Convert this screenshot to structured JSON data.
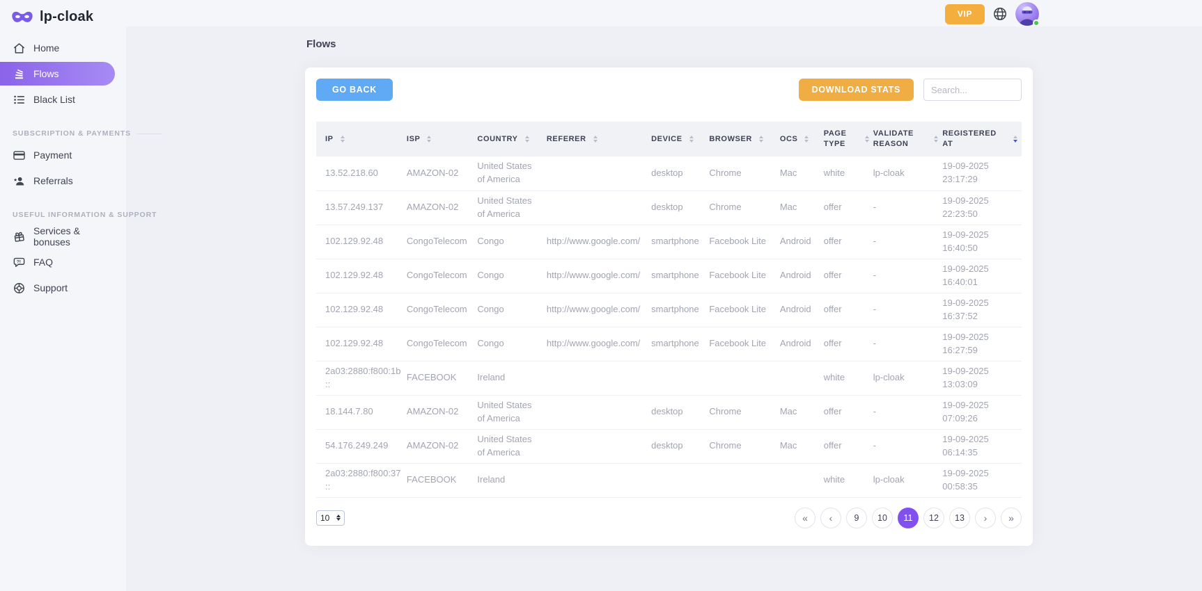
{
  "brand": {
    "name": "lp-cloak"
  },
  "colors": {
    "brand_purple": "#7A5BE8",
    "active_item_gradient": [
      "#8A63E9",
      "#A78BF4"
    ],
    "vip_button": "#F3AE3D",
    "go_back_button": "#60A9F4",
    "download_button": "#F0AD43",
    "active_page": "#8250EE",
    "online_status": "#45C94A",
    "active_sort_arrow": "#4A54E8"
  },
  "header": {
    "vip_label": "VIP"
  },
  "sidebar": {
    "main_items": [
      {
        "label": "Home",
        "icon": "home"
      },
      {
        "label": "Flows",
        "icon": "flows",
        "active": true
      },
      {
        "label": "Black List",
        "icon": "list"
      }
    ],
    "sections": [
      {
        "title": "SUBSCRIPTION & PAYMENTS",
        "items": [
          {
            "label": "Payment",
            "icon": "credit-card"
          },
          {
            "label": "Referrals",
            "icon": "referrals"
          }
        ]
      },
      {
        "title": "USEFUL INFORMATION & SUPPORT",
        "items": [
          {
            "label": "Services & bonuses",
            "icon": "gift"
          },
          {
            "label": "FAQ",
            "icon": "faq"
          },
          {
            "label": "Support",
            "icon": "support"
          }
        ]
      }
    ]
  },
  "page": {
    "title": "Flows"
  },
  "toolbar": {
    "go_back_label": "GO BACK",
    "download_stats_label": "DOWNLOAD STATS",
    "search_placeholder": "Search..."
  },
  "table": {
    "columns": [
      {
        "label": "IP",
        "sort": "none"
      },
      {
        "label": "ISP",
        "sort": "none"
      },
      {
        "label": "COUNTRY",
        "sort": "none"
      },
      {
        "label": "REFERER",
        "sort": "none"
      },
      {
        "label": "DEVICE",
        "sort": "none"
      },
      {
        "label": "BROWSER",
        "sort": "none"
      },
      {
        "label": "OCS",
        "sort": "none"
      },
      {
        "label": "PAGE TYPE",
        "sort": "none"
      },
      {
        "label": "VALIDATE REASON",
        "sort": "none"
      },
      {
        "label": "REGISTERED AT",
        "sort": "desc"
      }
    ],
    "rows": [
      [
        "13.52.218.60",
        "AMAZON-02",
        "United States of America",
        "",
        "desktop",
        "Chrome",
        "Mac",
        "white",
        "lp-cloak",
        "19-09-2025 23:17:29"
      ],
      [
        "13.57.249.137",
        "AMAZON-02",
        "United States of America",
        "",
        "desktop",
        "Chrome",
        "Mac",
        "offer",
        "-",
        "19-09-2025 22:23:50"
      ],
      [
        "102.129.92.48",
        "CongoTelecom",
        "Congo",
        "http://www.google.com/",
        "smartphone",
        "Facebook Lite",
        "Android",
        "offer",
        "-",
        "19-09-2025 16:40:50"
      ],
      [
        "102.129.92.48",
        "CongoTelecom",
        "Congo",
        "http://www.google.com/",
        "smartphone",
        "Facebook Lite",
        "Android",
        "offer",
        "-",
        "19-09-2025 16:40:01"
      ],
      [
        "102.129.92.48",
        "CongoTelecom",
        "Congo",
        "http://www.google.com/",
        "smartphone",
        "Facebook Lite",
        "Android",
        "offer",
        "-",
        "19-09-2025 16:37:52"
      ],
      [
        "102.129.92.48",
        "CongoTelecom",
        "Congo",
        "http://www.google.com/",
        "smartphone",
        "Facebook Lite",
        "Android",
        "offer",
        "-",
        "19-09-2025 16:27:59"
      ],
      [
        "2a03:2880:f800:1b::",
        "FACEBOOK",
        "Ireland",
        "",
        "",
        "",
        "",
        "white",
        "lp-cloak",
        "19-09-2025 13:03:09"
      ],
      [
        "18.144.7.80",
        "AMAZON-02",
        "United States of America",
        "",
        "desktop",
        "Chrome",
        "Mac",
        "offer",
        "-",
        "19-09-2025 07:09:26"
      ],
      [
        "54.176.249.249",
        "AMAZON-02",
        "United States of America",
        "",
        "desktop",
        "Chrome",
        "Mac",
        "offer",
        "-",
        "19-09-2025 06:14:35"
      ],
      [
        "2a03:2880:f800:37::",
        "FACEBOOK",
        "Ireland",
        "",
        "",
        "",
        "",
        "white",
        "lp-cloak",
        "19-09-2025 00:58:35"
      ]
    ]
  },
  "pagination": {
    "page_size": "10",
    "buttons": [
      {
        "label": "«",
        "kind": "first"
      },
      {
        "label": "‹",
        "kind": "prev"
      },
      {
        "label": "9",
        "kind": "page"
      },
      {
        "label": "10",
        "kind": "page"
      },
      {
        "label": "11",
        "kind": "page",
        "active": true
      },
      {
        "label": "12",
        "kind": "page"
      },
      {
        "label": "13",
        "kind": "page"
      },
      {
        "label": "›",
        "kind": "next"
      },
      {
        "label": "»",
        "kind": "last"
      }
    ]
  }
}
